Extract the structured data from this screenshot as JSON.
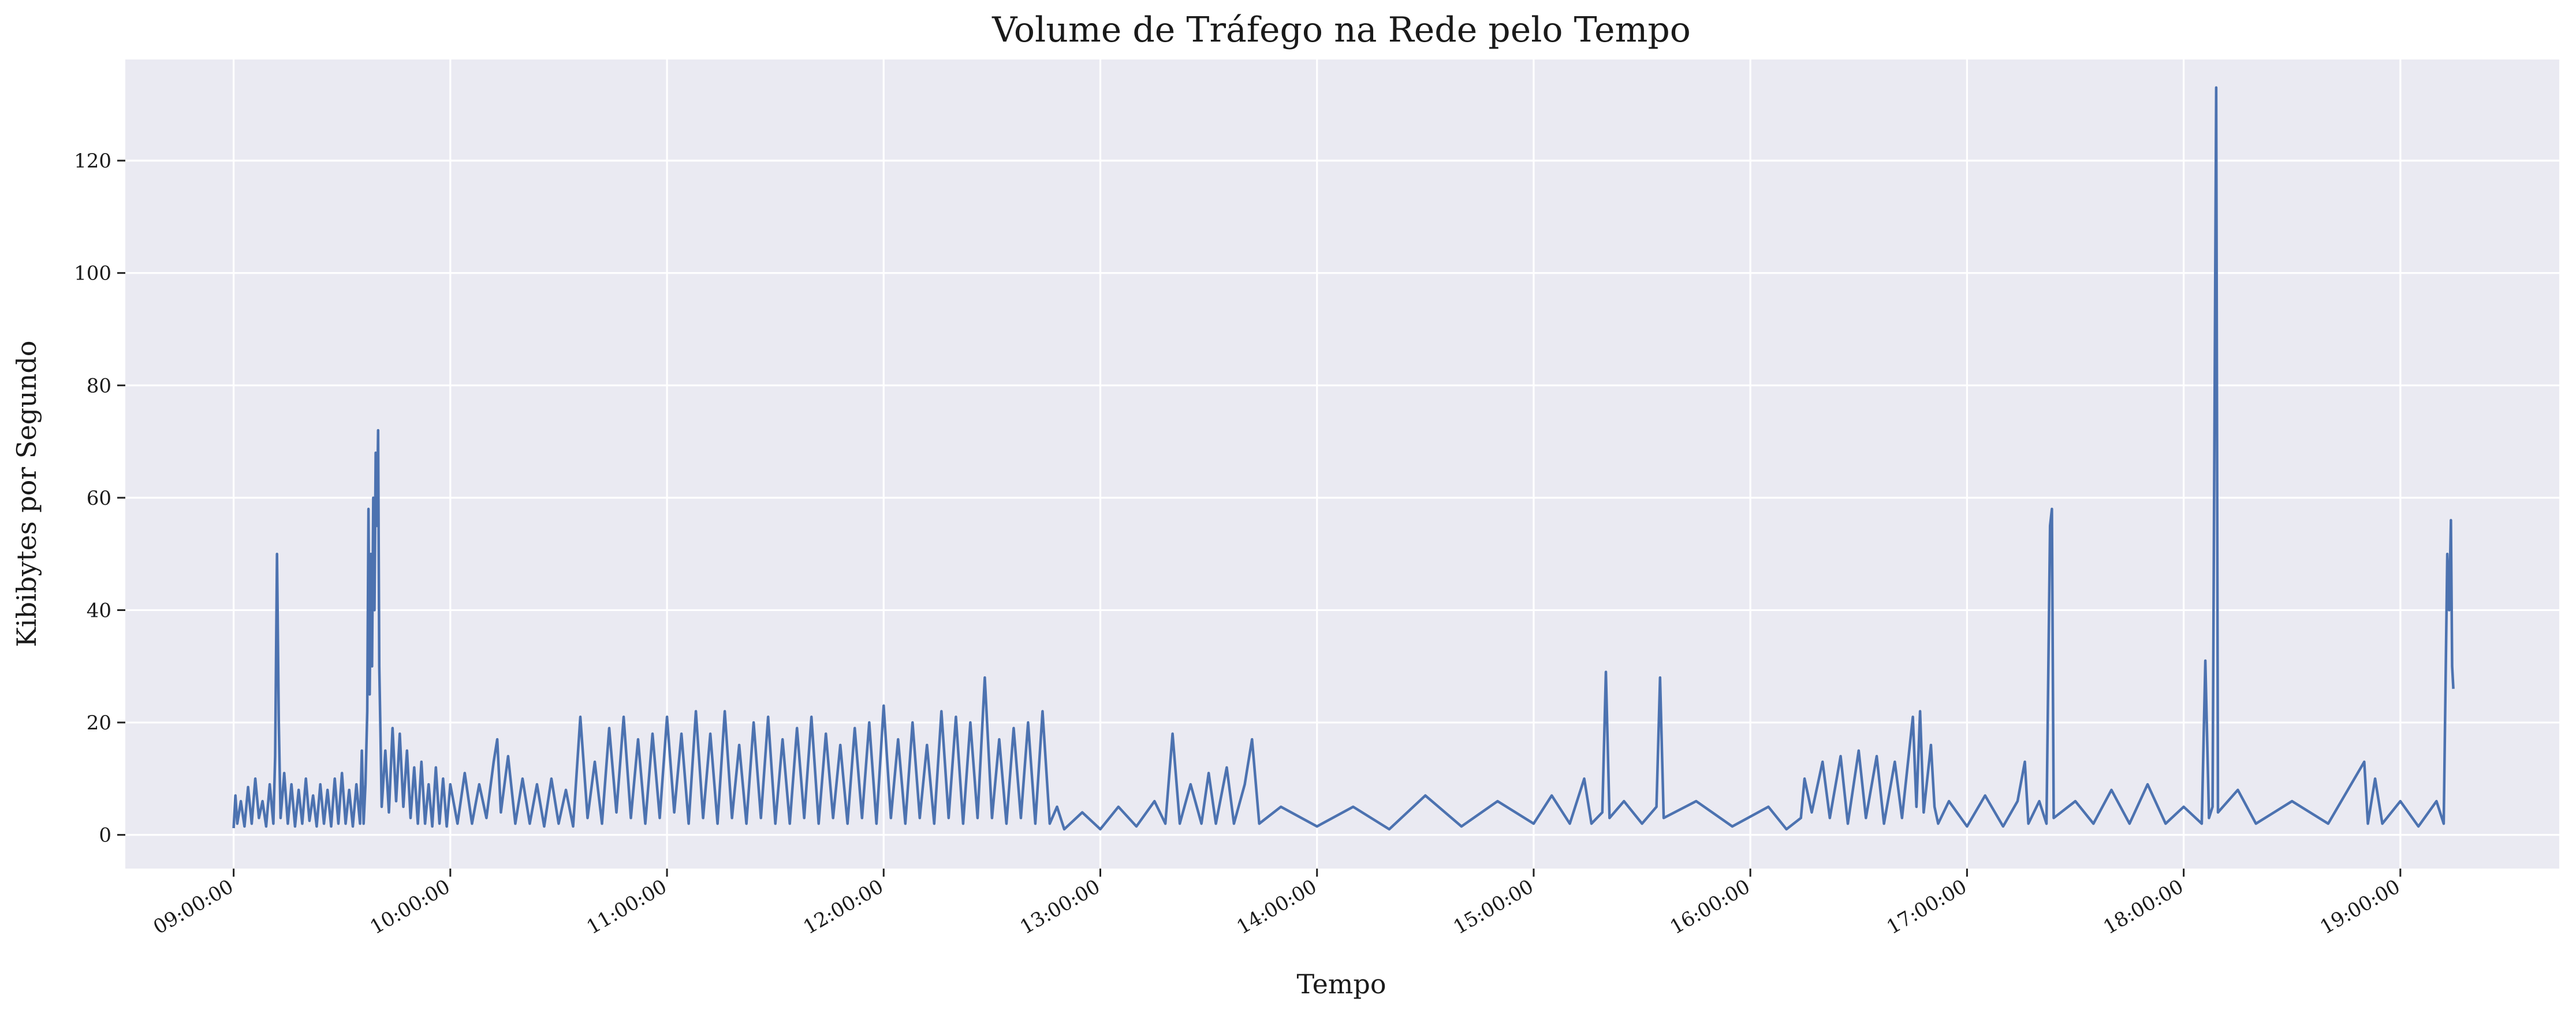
{
  "chart_data": {
    "type": "line",
    "title": "Volume de Tráfego na Rede pelo Tempo",
    "xlabel": "Tempo",
    "ylabel": "Kibibytes por Segundo",
    "x_ticks": [
      "09:00:00",
      "10:00:00",
      "11:00:00",
      "12:00:00",
      "13:00:00",
      "14:00:00",
      "15:00:00",
      "16:00:00",
      "17:00:00",
      "18:00:00",
      "19:00:00"
    ],
    "y_ticks": [
      0,
      20,
      40,
      60,
      80,
      100,
      120
    ],
    "xlim": [
      "08:30:00",
      "19:44:00"
    ],
    "ylim": [
      -6,
      138
    ],
    "grid": true,
    "background_color": "#eaeaf2",
    "line_color": "#4c72b0",
    "series": [
      {
        "points": [
          [
            "09:00:00",
            1.2
          ],
          [
            "09:00:30",
            7
          ],
          [
            "09:01:00",
            2
          ],
          [
            "09:02:00",
            6
          ],
          [
            "09:03:00",
            1.5
          ],
          [
            "09:04:00",
            8.5
          ],
          [
            "09:05:00",
            2
          ],
          [
            "09:06:00",
            10
          ],
          [
            "09:07:00",
            3
          ],
          [
            "09:08:00",
            6
          ],
          [
            "09:09:00",
            1.5
          ],
          [
            "09:10:00",
            9
          ],
          [
            "09:11:00",
            2
          ],
          [
            "09:11:30",
            14
          ],
          [
            "09:12:00",
            50
          ],
          [
            "09:12:30",
            20
          ],
          [
            "09:13:00",
            3
          ],
          [
            "09:14:00",
            11
          ],
          [
            "09:15:00",
            2
          ],
          [
            "09:16:00",
            9
          ],
          [
            "09:17:00",
            1.5
          ],
          [
            "09:18:00",
            8
          ],
          [
            "09:19:00",
            2
          ],
          [
            "09:20:00",
            10
          ],
          [
            "09:21:00",
            2.5
          ],
          [
            "09:22:00",
            7
          ],
          [
            "09:23:00",
            1.5
          ],
          [
            "09:24:00",
            9
          ],
          [
            "09:25:00",
            2
          ],
          [
            "09:26:00",
            8
          ],
          [
            "09:27:00",
            1.5
          ],
          [
            "09:28:00",
            10
          ],
          [
            "09:29:00",
            2
          ],
          [
            "09:30:00",
            11
          ],
          [
            "09:31:00",
            2
          ],
          [
            "09:32:00",
            8
          ],
          [
            "09:33:00",
            1.5
          ],
          [
            "09:34:00",
            9
          ],
          [
            "09:35:00",
            2
          ],
          [
            "09:35:30",
            15
          ],
          [
            "09:36:00",
            2
          ],
          [
            "09:36:30",
            9
          ],
          [
            "09:37:00",
            22
          ],
          [
            "09:37:20",
            58
          ],
          [
            "09:37:40",
            25
          ],
          [
            "09:38:00",
            50
          ],
          [
            "09:38:20",
            30
          ],
          [
            "09:38:40",
            60
          ],
          [
            "09:39:00",
            40
          ],
          [
            "09:39:20",
            68
          ],
          [
            "09:39:40",
            55
          ],
          [
            "09:40:00",
            72
          ],
          [
            "09:40:20",
            30
          ],
          [
            "09:40:40",
            18
          ],
          [
            "09:41:00",
            5
          ],
          [
            "09:42:00",
            15
          ],
          [
            "09:43:00",
            4
          ],
          [
            "09:44:00",
            19
          ],
          [
            "09:45:00",
            6
          ],
          [
            "09:46:00",
            18
          ],
          [
            "09:47:00",
            5
          ],
          [
            "09:48:00",
            15
          ],
          [
            "09:49:00",
            3
          ],
          [
            "09:50:00",
            12
          ],
          [
            "09:51:00",
            2
          ],
          [
            "09:52:00",
            13
          ],
          [
            "09:53:00",
            2
          ],
          [
            "09:54:00",
            9
          ],
          [
            "09:55:00",
            1.5
          ],
          [
            "09:56:00",
            12
          ],
          [
            "09:57:00",
            2
          ],
          [
            "09:58:00",
            10
          ],
          [
            "09:59:00",
            1.5
          ],
          [
            "10:00:00",
            9
          ],
          [
            "10:02:00",
            2
          ],
          [
            "10:04:00",
            11
          ],
          [
            "10:06:00",
            2
          ],
          [
            "10:08:00",
            9
          ],
          [
            "10:10:00",
            3
          ],
          [
            "10:12:00",
            13
          ],
          [
            "10:13:00",
            17
          ],
          [
            "10:14:00",
            4
          ],
          [
            "10:16:00",
            14
          ],
          [
            "10:18:00",
            2
          ],
          [
            "10:20:00",
            10
          ],
          [
            "10:22:00",
            2
          ],
          [
            "10:24:00",
            9
          ],
          [
            "10:26:00",
            1.5
          ],
          [
            "10:28:00",
            10
          ],
          [
            "10:30:00",
            2
          ],
          [
            "10:32:00",
            8
          ],
          [
            "10:34:00",
            1.5
          ],
          [
            "10:36:00",
            21
          ],
          [
            "10:38:00",
            3
          ],
          [
            "10:40:00",
            13
          ],
          [
            "10:42:00",
            2
          ],
          [
            "10:44:00",
            19
          ],
          [
            "10:46:00",
            4
          ],
          [
            "10:48:00",
            21
          ],
          [
            "10:50:00",
            3
          ],
          [
            "10:52:00",
            17
          ],
          [
            "10:54:00",
            2
          ],
          [
            "10:56:00",
            18
          ],
          [
            "10:58:00",
            3
          ],
          [
            "11:00:00",
            21
          ],
          [
            "11:02:00",
            4
          ],
          [
            "11:04:00",
            18
          ],
          [
            "11:06:00",
            2
          ],
          [
            "11:08:00",
            22
          ],
          [
            "11:10:00",
            3
          ],
          [
            "11:12:00",
            18
          ],
          [
            "11:14:00",
            2
          ],
          [
            "11:16:00",
            22
          ],
          [
            "11:18:00",
            3
          ],
          [
            "11:20:00",
            16
          ],
          [
            "11:22:00",
            2
          ],
          [
            "11:24:00",
            20
          ],
          [
            "11:26:00",
            3
          ],
          [
            "11:28:00",
            21
          ],
          [
            "11:30:00",
            2
          ],
          [
            "11:32:00",
            17
          ],
          [
            "11:34:00",
            2
          ],
          [
            "11:36:00",
            19
          ],
          [
            "11:38:00",
            3
          ],
          [
            "11:40:00",
            21
          ],
          [
            "11:42:00",
            2
          ],
          [
            "11:44:00",
            18
          ],
          [
            "11:46:00",
            3
          ],
          [
            "11:48:00",
            16
          ],
          [
            "11:50:00",
            2
          ],
          [
            "11:52:00",
            19
          ],
          [
            "11:54:00",
            3
          ],
          [
            "11:56:00",
            20
          ],
          [
            "11:58:00",
            2
          ],
          [
            "12:00:00",
            23
          ],
          [
            "12:02:00",
            3
          ],
          [
            "12:04:00",
            17
          ],
          [
            "12:06:00",
            2
          ],
          [
            "12:08:00",
            20
          ],
          [
            "12:10:00",
            3
          ],
          [
            "12:12:00",
            16
          ],
          [
            "12:14:00",
            2
          ],
          [
            "12:16:00",
            22
          ],
          [
            "12:18:00",
            3
          ],
          [
            "12:20:00",
            21
          ],
          [
            "12:22:00",
            2
          ],
          [
            "12:24:00",
            20
          ],
          [
            "12:26:00",
            3
          ],
          [
            "12:28:00",
            28
          ],
          [
            "12:30:00",
            3
          ],
          [
            "12:32:00",
            17
          ],
          [
            "12:34:00",
            2
          ],
          [
            "12:36:00",
            19
          ],
          [
            "12:38:00",
            3
          ],
          [
            "12:40:00",
            20
          ],
          [
            "12:42:00",
            2
          ],
          [
            "12:44:00",
            22
          ],
          [
            "12:46:00",
            2
          ],
          [
            "12:48:00",
            5
          ],
          [
            "12:50:00",
            1
          ],
          [
            "12:55:00",
            4
          ],
          [
            "13:00:00",
            1
          ],
          [
            "13:05:00",
            5
          ],
          [
            "13:10:00",
            1.5
          ],
          [
            "13:15:00",
            6
          ],
          [
            "13:18:00",
            2
          ],
          [
            "13:20:00",
            18
          ],
          [
            "13:22:00",
            2
          ],
          [
            "13:25:00",
            9
          ],
          [
            "13:28:00",
            2
          ],
          [
            "13:30:00",
            11
          ],
          [
            "13:32:00",
            2
          ],
          [
            "13:35:00",
            12
          ],
          [
            "13:37:00",
            2
          ],
          [
            "13:40:00",
            9
          ],
          [
            "13:42:00",
            17
          ],
          [
            "13:44:00",
            2
          ],
          [
            "13:50:00",
            5
          ],
          [
            "14:00:00",
            1.5
          ],
          [
            "14:10:00",
            5
          ],
          [
            "14:20:00",
            1
          ],
          [
            "14:30:00",
            7
          ],
          [
            "14:40:00",
            1.5
          ],
          [
            "14:50:00",
            6
          ],
          [
            "15:00:00",
            2
          ],
          [
            "15:05:00",
            7
          ],
          [
            "15:10:00",
            2
          ],
          [
            "15:14:00",
            10
          ],
          [
            "15:16:00",
            2
          ],
          [
            "15:19:00",
            4
          ],
          [
            "15:20:00",
            29
          ],
          [
            "15:21:00",
            3
          ],
          [
            "15:25:00",
            6
          ],
          [
            "15:30:00",
            2
          ],
          [
            "15:34:00",
            5
          ],
          [
            "15:35:00",
            28
          ],
          [
            "15:36:00",
            3
          ],
          [
            "15:45:00",
            6
          ],
          [
            "15:55:00",
            1.5
          ],
          [
            "16:05:00",
            5
          ],
          [
            "16:10:00",
            1
          ],
          [
            "16:14:00",
            3
          ],
          [
            "16:15:00",
            10
          ],
          [
            "16:17:00",
            4
          ],
          [
            "16:20:00",
            13
          ],
          [
            "16:22:00",
            3
          ],
          [
            "16:25:00",
            14
          ],
          [
            "16:27:00",
            2
          ],
          [
            "16:30:00",
            15
          ],
          [
            "16:32:00",
            3
          ],
          [
            "16:35:00",
            14
          ],
          [
            "16:37:00",
            2
          ],
          [
            "16:40:00",
            13
          ],
          [
            "16:42:00",
            3
          ],
          [
            "16:45:00",
            21
          ],
          [
            "16:46:00",
            5
          ],
          [
            "16:47:00",
            22
          ],
          [
            "16:48:00",
            4
          ],
          [
            "16:50:00",
            16
          ],
          [
            "16:51:00",
            5
          ],
          [
            "16:52:00",
            2
          ],
          [
            "16:55:00",
            6
          ],
          [
            "17:00:00",
            1.5
          ],
          [
            "17:05:00",
            7
          ],
          [
            "17:10:00",
            1.5
          ],
          [
            "17:14:00",
            6
          ],
          [
            "17:16:00",
            13
          ],
          [
            "17:17:00",
            2
          ],
          [
            "17:20:00",
            6
          ],
          [
            "17:22:00",
            2
          ],
          [
            "17:23:00",
            55
          ],
          [
            "17:23:30",
            58
          ],
          [
            "17:24:00",
            3
          ],
          [
            "17:30:00",
            6
          ],
          [
            "17:35:00",
            2
          ],
          [
            "17:40:00",
            8
          ],
          [
            "17:45:00",
            2
          ],
          [
            "17:50:00",
            9
          ],
          [
            "17:55:00",
            2
          ],
          [
            "18:00:00",
            5
          ],
          [
            "18:05:00",
            2
          ],
          [
            "18:06:00",
            31
          ],
          [
            "18:07:00",
            3
          ],
          [
            "18:08:00",
            5
          ],
          [
            "18:09:00",
            133
          ],
          [
            "18:09:30",
            4
          ],
          [
            "18:15:00",
            8
          ],
          [
            "18:20:00",
            2
          ],
          [
            "18:30:00",
            6
          ],
          [
            "18:40:00",
            2
          ],
          [
            "18:50:00",
            13
          ],
          [
            "18:51:00",
            2
          ],
          [
            "18:53:00",
            10
          ],
          [
            "18:55:00",
            2
          ],
          [
            "19:00:00",
            6
          ],
          [
            "19:05:00",
            1.5
          ],
          [
            "19:10:00",
            6
          ],
          [
            "19:12:00",
            2
          ],
          [
            "19:13:00",
            50
          ],
          [
            "19:13:30",
            40
          ],
          [
            "19:14:00",
            56
          ],
          [
            "19:14:20",
            30
          ],
          [
            "19:14:40",
            26
          ]
        ]
      }
    ]
  }
}
